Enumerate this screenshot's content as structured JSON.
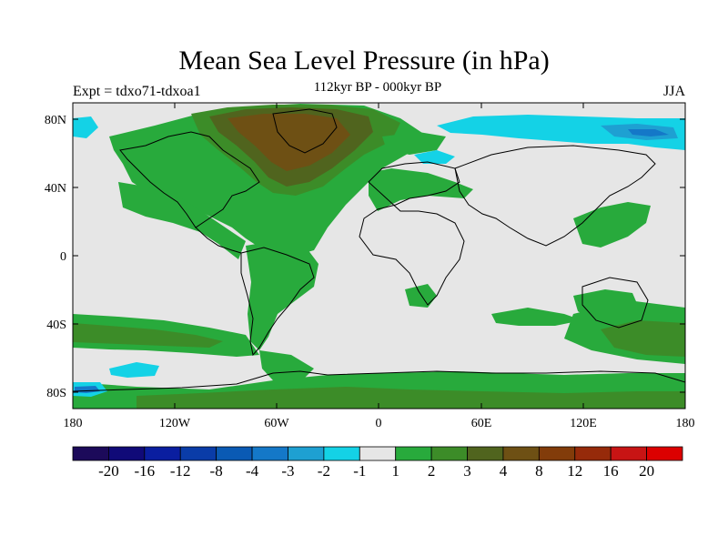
{
  "title": "Mean Sea Level Pressure (in hPa)",
  "subtitle_left": "Expt = tdxo71-tdxoa1",
  "subtitle_center": "112kyr BP - 000kyr BP",
  "subtitle_right": "JJA",
  "y_ticks": [
    "80N",
    "40N",
    "0",
    "40S",
    "80S"
  ],
  "x_ticks": [
    "180",
    "120W",
    "60W",
    "0",
    "60E",
    "120E",
    "180"
  ],
  "colorbar": {
    "colors": [
      "#1c0a5a",
      "#100a78",
      "#0a1ea0",
      "#0a3ca8",
      "#0a5ab4",
      "#1478c8",
      "#1ea0d2",
      "#14d2e6",
      "#e6e6e6",
      "#28aa3c",
      "#3c8c28",
      "#50641e",
      "#6e5014",
      "#823c0a",
      "#962a0a",
      "#c81414",
      "#dc0000"
    ],
    "labels": [
      "-20",
      "-16",
      "-12",
      "-8",
      "-4",
      "-3",
      "-2",
      "-1",
      "1",
      "2",
      "3",
      "4",
      "8",
      "12",
      "16",
      "20"
    ]
  },
  "field_colors": {
    "neutral": "#e6e6e6",
    "pos1": "#28aa3c",
    "pos2": "#3c8c28",
    "pos3": "#50641e",
    "pos4": "#6e5014",
    "neg1": "#14d2e6",
    "neg2": "#1ea0d2",
    "neg3": "#1478c8",
    "neg4": "#0a5ab4"
  }
}
